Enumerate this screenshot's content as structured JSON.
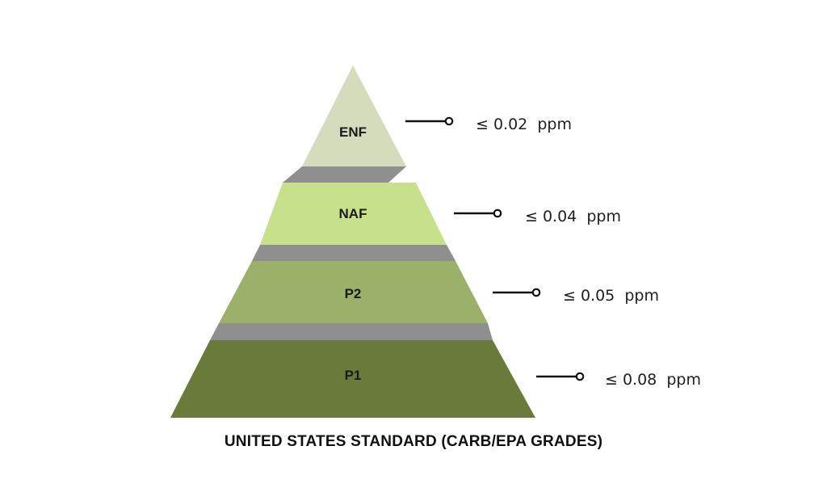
{
  "title": "UNITED STATES STANDARD (CARB/EPA GRADES)",
  "colors": {
    "enf": "#d5dcbb",
    "naf": "#c6e08c",
    "p2": "#9bb069",
    "p1": "#6a7a3a",
    "connector": "#8f8f8f",
    "leader": "#111111"
  },
  "tiers": [
    {
      "id": "enf",
      "label": "ENF",
      "limit": "≤ 0.02  ppm"
    },
    {
      "id": "naf",
      "label": "NAF",
      "limit": "≤ 0.04  ppm"
    },
    {
      "id": "p2",
      "label": "P2",
      "limit": "≤ 0.05  ppm"
    },
    {
      "id": "p1",
      "label": "P1",
      "limit": "≤ 0.08  ppm"
    }
  ]
}
